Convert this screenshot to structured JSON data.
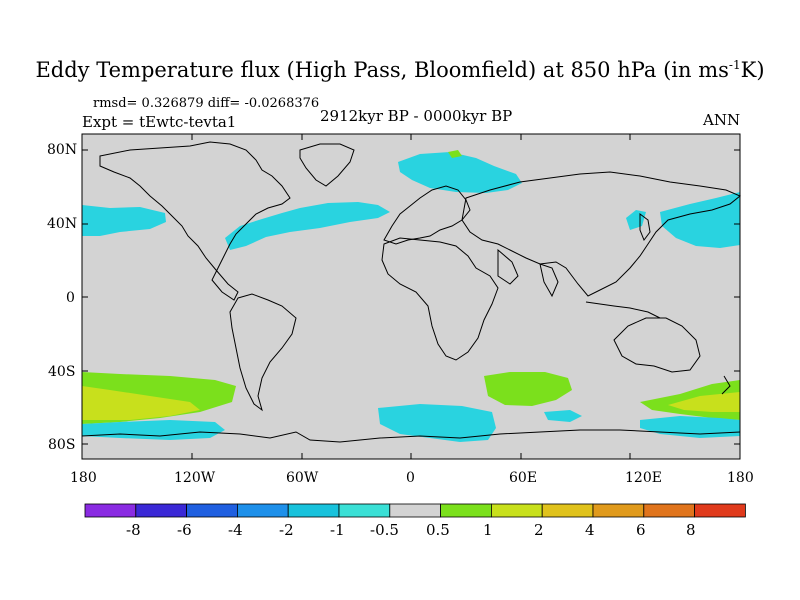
{
  "title": "Eddy Temperature flux (High Pass, Bloomfield) at 850 hPa (in ms",
  "title_sup": "-1",
  "title_end": "K)",
  "stats": "rmsd= 0.326879 diff= -0.0268376",
  "experiment": "Expt = tEwtc-tevta1",
  "period": "2912kyr BP - 0000kyr BP",
  "season": "ANN",
  "lat_labels": [
    "80N",
    "40N",
    "0",
    "40S",
    "80S"
  ],
  "lon_labels": [
    "180",
    "120W",
    "60W",
    "0",
    "60E",
    "120E",
    "180"
  ],
  "colorbar": {
    "labels": [
      "-8",
      "-6",
      "-4",
      "-2",
      "-1",
      "-0.5",
      "0.5",
      "1",
      "2",
      "4",
      "6",
      "8"
    ],
    "colors": [
      "#8a2be2",
      "#3a28d6",
      "#1f5fe0",
      "#1e90ea",
      "#18c2dc",
      "#3ae0d6",
      "#d3d3d3",
      "#7be01c",
      "#c8e01c",
      "#e0c21c",
      "#e09a1c",
      "#e0741c",
      "#e03a1c"
    ]
  },
  "map": {
    "background_color": "#d3d3d3",
    "coast_color": "#000000",
    "anomaly_colors": {
      "cyan": "#29d3e0",
      "light_green": "#7be01c",
      "yellow_green": "#c8e01c"
    }
  }
}
